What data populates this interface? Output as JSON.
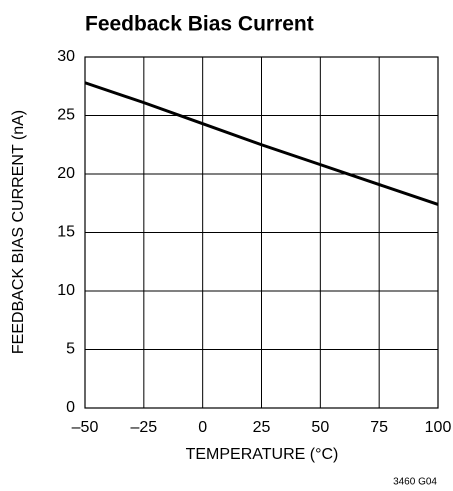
{
  "chart_data": {
    "type": "line",
    "title": "Feedback Bias Current",
    "x_label": "TEMPERATURE (°C)",
    "y_label": "FEEDBACK BIAS CURRENT (nA)",
    "annotation": "3460 G04",
    "x": [
      -50,
      -25,
      0,
      25,
      50,
      75,
      100
    ],
    "series": [
      {
        "color": "#000000",
        "values": [
          27.8,
          26.1,
          24.3,
          22.5,
          20.8,
          19.1,
          17.4
        ]
      }
    ],
    "xlim": [
      -50,
      100
    ],
    "xticks": [
      {
        "value": -50,
        "label": "–50"
      },
      {
        "value": -25,
        "label": "–25"
      },
      0,
      25,
      50,
      75,
      100
    ],
    "ylim": [
      0,
      30
    ],
    "yticks": [
      0,
      5,
      10,
      15,
      20,
      25,
      30
    ],
    "grid": true
  }
}
